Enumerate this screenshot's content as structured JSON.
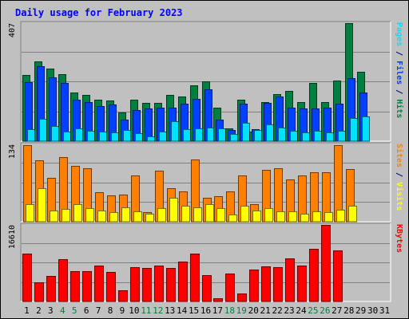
{
  "chart_data": {
    "type": "bar",
    "title": "Daily usage for February 2023",
    "days": [
      "1",
      "2",
      "3",
      "4",
      "5",
      "6",
      "7",
      "8",
      "9",
      "10",
      "11",
      "12",
      "13",
      "14",
      "15",
      "16",
      "17",
      "18",
      "19",
      "20",
      "21",
      "22",
      "23",
      "24",
      "25",
      "26",
      "27",
      "28",
      "29",
      "30",
      "31"
    ],
    "weekend_days": [
      "4",
      "5",
      "11",
      "12",
      "18",
      "19",
      "25",
      "26"
    ],
    "panels": [
      {
        "id": "hits-files-pages",
        "max_label": "407",
        "ymax": 407,
        "side_label": [
          {
            "text": "Pages",
            "color": "#00e0ff"
          },
          {
            "text": " / ",
            "color": "#000080"
          },
          {
            "text": "Files",
            "color": "#0040ff"
          },
          {
            "text": " / ",
            "color": "#000080"
          },
          {
            "text": "Hits",
            "color": "#008040"
          }
        ],
        "series": [
          {
            "name": "Hits",
            "color": "#008040",
            "values": [
              228,
              276,
              249,
              230,
              167,
              159,
              142,
              140,
              99,
              143,
              131,
              132,
              160,
              155,
              192,
              205,
              115,
              44,
              144,
              34,
              135,
              161,
              172,
              136,
              200,
              135,
              210,
              407,
              240,
              null,
              null
            ]
          },
          {
            "name": "Files",
            "color": "#0040ff",
            "values": [
              204,
              259,
              221,
              200,
              143,
              135,
              122,
              126,
              74,
              107,
              113,
              116,
              115,
              129,
              146,
              178,
              73,
              38,
              128,
              42,
              132,
              154,
              115,
              114,
              114,
              115,
              130,
              218,
              167,
              null,
              null
            ]
          },
          {
            "name": "Pages",
            "color": "#00e0ff",
            "values": [
              41,
              77,
              52,
              34,
              45,
              37,
              33,
              30,
              39,
              27,
              17,
              33,
              68,
              41,
              44,
              46,
              44,
              25,
              62,
              38,
              59,
              46,
              36,
              30,
              37,
              30,
              37,
              81,
              84,
              null,
              null
            ]
          }
        ]
      },
      {
        "id": "sites-visits",
        "max_label": "134",
        "ymax": 134,
        "side_label": [
          {
            "text": "Sites",
            "color": "#ff8000"
          },
          {
            "text": " / ",
            "color": "#000080"
          },
          {
            "text": "Visits",
            "color": "#ffff00"
          }
        ],
        "series": [
          {
            "name": "Sites",
            "color": "#ff8000",
            "values": [
              132,
              106,
              76,
              112,
              97,
              92,
              51,
              46,
              47,
              80,
              16,
              88,
              58,
              52,
              108,
              41,
              44,
              53,
              80,
              30,
              90,
              92,
              73,
              80,
              85,
              86,
              132,
              91,
              null,
              null,
              null
            ]
          },
          {
            "name": "Visits",
            "color": "#ffff00",
            "values": [
              30,
              58,
              20,
              22,
              30,
              24,
              19,
              16,
              25,
              18,
              14,
              23,
              42,
              28,
              25,
              30,
              23,
              13,
              28,
              19,
              24,
              18,
              18,
              14,
              18,
              17,
              21,
              28,
              null,
              null,
              null
            ]
          }
        ]
      },
      {
        "id": "kbytes",
        "max_label": "16610",
        "ymax": 16610,
        "side_label": [
          {
            "text": "KBytes",
            "color": "#ff0000"
          }
        ],
        "series": [
          {
            "name": "KBytes",
            "color": "#ff0000",
            "values": [
              10400,
              4100,
              5500,
              9200,
              6500,
              6600,
              7700,
              6400,
              2500,
              7400,
              7300,
              7800,
              7200,
              8600,
              10300,
              5700,
              700,
              6000,
              1800,
              6900,
              7600,
              7500,
              9300,
              7800,
              11400,
              16610,
              11000,
              null,
              null,
              null,
              null
            ]
          }
        ]
      }
    ]
  }
}
